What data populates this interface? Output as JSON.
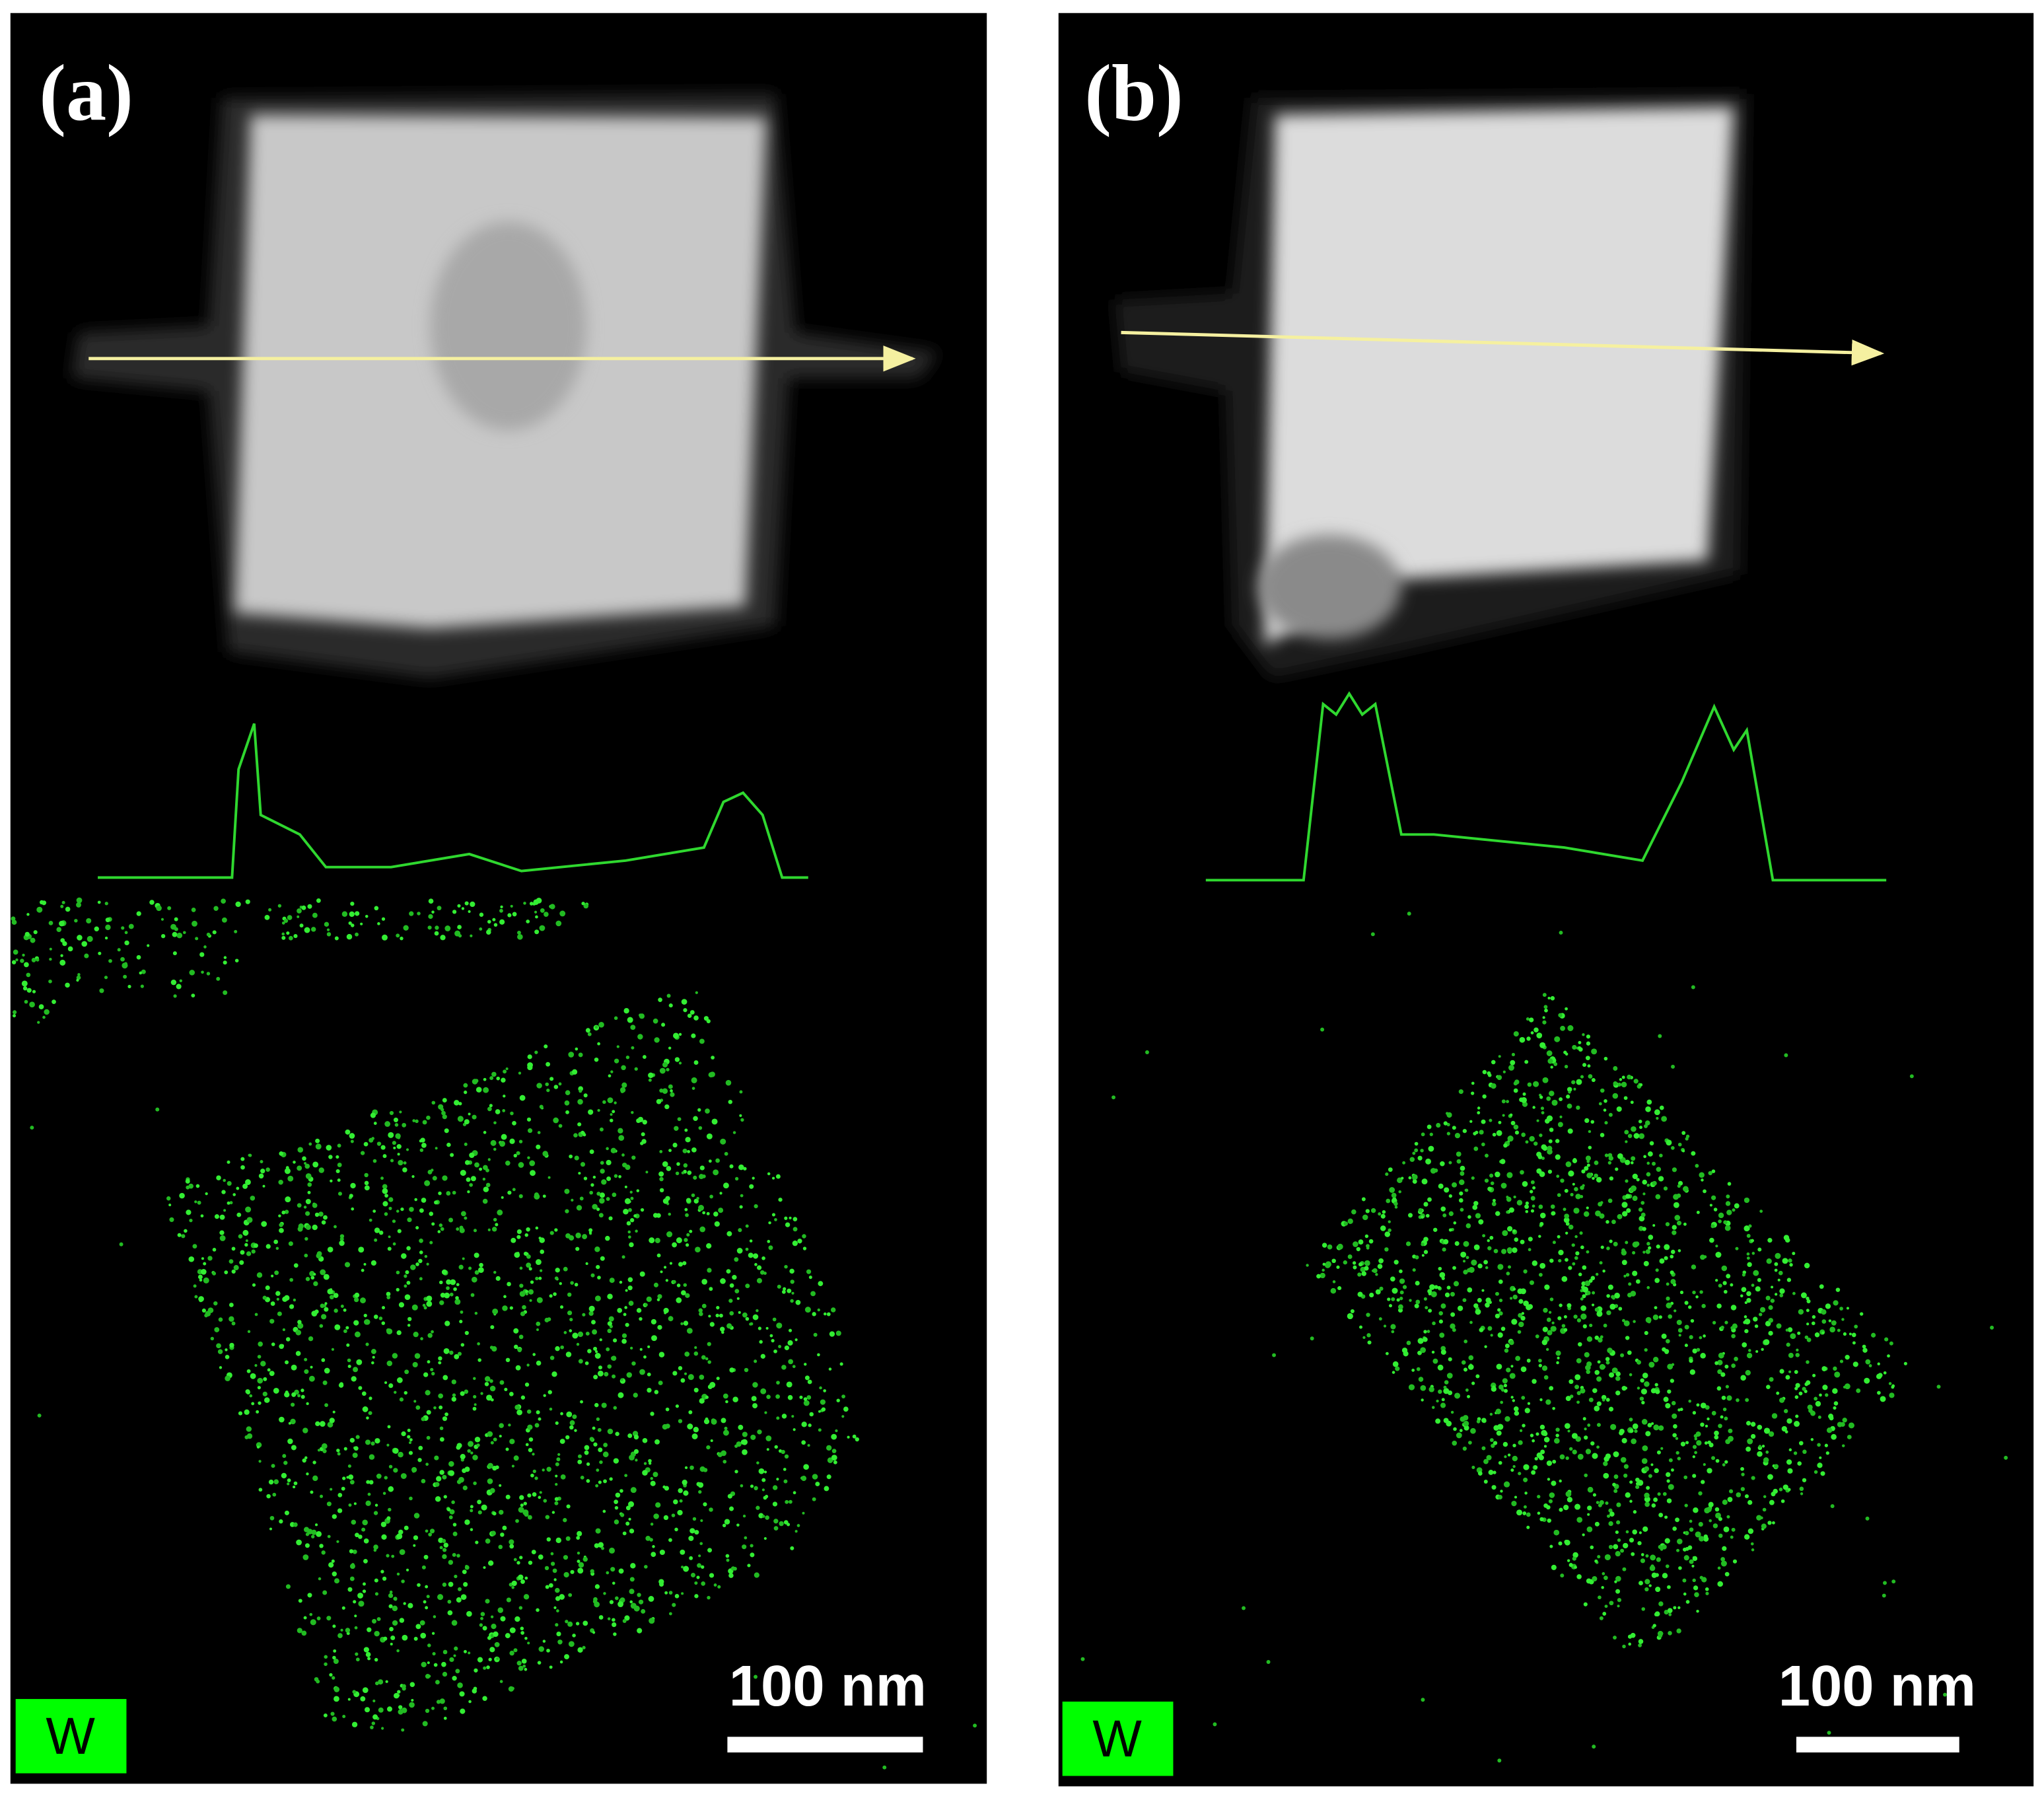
{
  "panels": [
    {
      "label": "(a)",
      "element": "W",
      "scale_bar": "100 nm"
    },
    {
      "label": "(b)",
      "element": "W",
      "scale_bar": "100 nm"
    }
  ]
}
